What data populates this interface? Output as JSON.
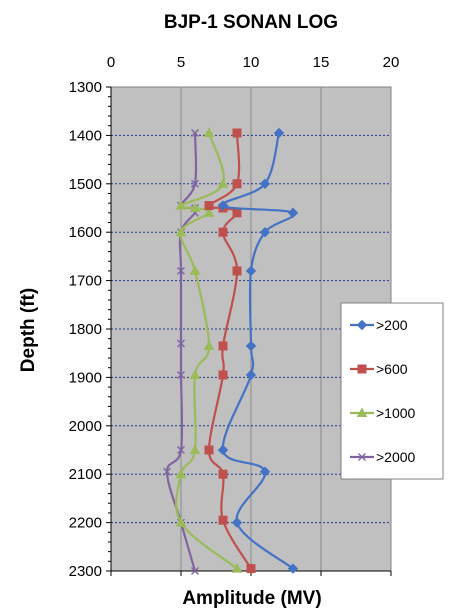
{
  "chart_data": {
    "type": "line",
    "title": "BJP-1 SONAN LOG",
    "xlabel": "Amplitude (MV)",
    "ylabel": "Depth (ft)",
    "xlim": [
      0,
      20
    ],
    "ylim": [
      1300,
      2300
    ],
    "y_reversed": true,
    "x_axis_position": "top",
    "x_ticks": [
      0,
      5,
      10,
      15,
      20
    ],
    "y_ticks": [
      1300,
      1400,
      1500,
      1600,
      1700,
      1800,
      1900,
      2000,
      2100,
      2200,
      2300
    ],
    "grid": "horizontal dashed and vertical solid",
    "plot_background": "#c0c0c0",
    "legend_position": "right",
    "series": [
      {
        "name": ">200",
        "color": "#4472c4",
        "marker": "diamond",
        "points": [
          [
            12,
            1395
          ],
          [
            11,
            1500
          ],
          [
            8,
            1545
          ],
          [
            13,
            1560
          ],
          [
            11,
            1600
          ],
          [
            10,
            1680
          ],
          [
            10,
            1835
          ],
          [
            10,
            1895
          ],
          [
            8,
            2050
          ],
          [
            11,
            2095
          ],
          [
            9,
            2200
          ],
          [
            13,
            2295
          ]
        ]
      },
      {
        "name": ">600",
        "color": "#c0504d",
        "marker": "square",
        "points": [
          [
            9,
            1395
          ],
          [
            9,
            1500
          ],
          [
            7,
            1545
          ],
          [
            8,
            1550
          ],
          [
            9,
            1560
          ],
          [
            8,
            1600
          ],
          [
            9,
            1680
          ],
          [
            8,
            1835
          ],
          [
            8,
            1895
          ],
          [
            7,
            2050
          ],
          [
            8,
            2100
          ],
          [
            8,
            2195
          ],
          [
            10,
            2295
          ]
        ]
      },
      {
        "name": ">1000",
        "color": "#9bbb59",
        "marker": "triangle",
        "points": [
          [
            7,
            1395
          ],
          [
            8,
            1500
          ],
          [
            5,
            1545
          ],
          [
            6,
            1550
          ],
          [
            7,
            1560
          ],
          [
            5,
            1600
          ],
          [
            6,
            1680
          ],
          [
            7,
            1835
          ],
          [
            6,
            1895
          ],
          [
            6,
            2050
          ],
          [
            5,
            2100
          ],
          [
            5,
            2200
          ],
          [
            9,
            2295
          ]
        ]
      },
      {
        "name": ">2000",
        "color": "#8064a2",
        "marker": "x",
        "points": [
          [
            6,
            1395
          ],
          [
            6,
            1500
          ],
          [
            5,
            1545
          ],
          [
            6,
            1550
          ],
          [
            6,
            1560
          ],
          [
            5,
            1600
          ],
          [
            5,
            1680
          ],
          [
            5,
            1830
          ],
          [
            5,
            1895
          ],
          [
            5,
            2050
          ],
          [
            4,
            2095
          ],
          [
            5,
            2200
          ],
          [
            6,
            2300
          ]
        ]
      }
    ]
  }
}
